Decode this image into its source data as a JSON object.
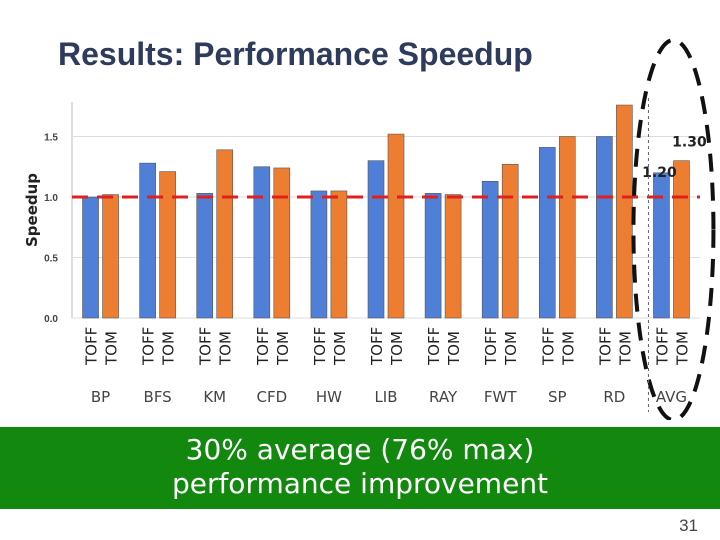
{
  "slide": {
    "title": "Results: Performance Speedup",
    "banner_line1": "30% average (76% max)",
    "banner_line2": "performance improvement",
    "page_number": "31"
  },
  "colors": {
    "toff": "#4f7fd6",
    "tom": "#ed7d31",
    "baseline": "#e02020",
    "banner": "#12880f"
  },
  "chart_data": {
    "type": "bar",
    "title": "",
    "xlabel": "",
    "ylabel": "Speedup",
    "ylim": [
      0,
      1.75
    ],
    "yticks": [
      "0.0",
      "0.5",
      "1.0",
      "1.5"
    ],
    "categories": [
      "BP",
      "BFS",
      "KM",
      "CFD",
      "HW",
      "LIB",
      "RAY",
      "FWT",
      "SP",
      "RD",
      "AVG"
    ],
    "series": [
      {
        "name": "TOFF",
        "values": [
          1.0,
          1.28,
          1.03,
          1.25,
          1.05,
          1.3,
          1.03,
          1.13,
          1.41,
          1.5,
          1.2
        ]
      },
      {
        "name": "TOM",
        "values": [
          1.02,
          1.21,
          1.39,
          1.24,
          1.05,
          1.52,
          1.02,
          1.27,
          1.5,
          1.76,
          1.3
        ]
      }
    ],
    "baseline": 1.0,
    "data_labels": {
      "AVG_TOFF": "1.20",
      "AVG_TOM": "1.30"
    },
    "highlight": "AVG"
  }
}
